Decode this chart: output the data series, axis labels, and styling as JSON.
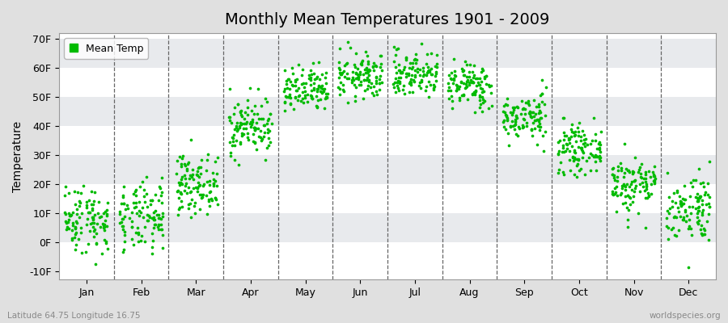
{
  "title": "Monthly Mean Temperatures 1901 - 2009",
  "ylabel": "Temperature",
  "bottom_left": "Latitude 64.75 Longitude 16.75",
  "bottom_right": "worldspecies.org",
  "legend_label": "Mean Temp",
  "dot_color": "#00BB00",
  "bg_color": "#E0E0E0",
  "plot_bg_color": "#FFFFFF",
  "band_colors": [
    "#FFFFFF",
    "#E8E8E8"
  ],
  "months": [
    "Jan",
    "Feb",
    "Mar",
    "Apr",
    "May",
    "Jun",
    "Jul",
    "Aug",
    "Sep",
    "Oct",
    "Nov",
    "Dec"
  ],
  "ylim": [
    -13,
    72
  ],
  "yticks": [
    -10,
    0,
    10,
    20,
    30,
    40,
    50,
    60,
    70
  ],
  "ytick_labels": [
    "-10F",
    "0F",
    "10F",
    "20F",
    "30F",
    "40F",
    "50F",
    "60F",
    "70F"
  ],
  "mean_temps_F": [
    8,
    8,
    20,
    40,
    52,
    57,
    58,
    54,
    43,
    32,
    20,
    12
  ],
  "std_temps_F": [
    6,
    6,
    5,
    5,
    4,
    4,
    4,
    4,
    4,
    4,
    5,
    6
  ],
  "n_years": 109,
  "random_seed": 42
}
